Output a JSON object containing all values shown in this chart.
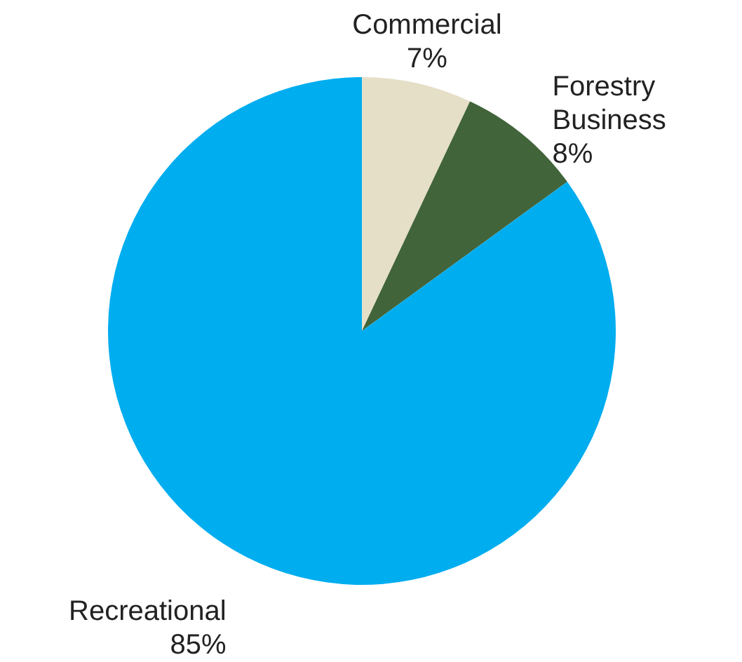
{
  "chart_data": {
    "type": "pie",
    "categories": [
      "Commercial",
      "Forestry Business",
      "Recreational"
    ],
    "values": [
      7,
      8,
      85
    ],
    "value_labels": [
      "7%",
      "8%",
      "85%"
    ],
    "colors": [
      "#e6dfc8",
      "#41643a",
      "#00adef"
    ]
  }
}
